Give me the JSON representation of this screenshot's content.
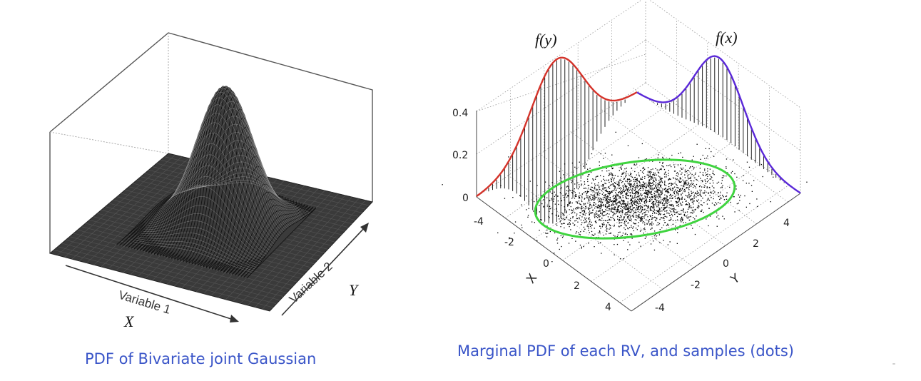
{
  "left_panel": {
    "x_axis_label": "Variable 1",
    "y_axis_label": "Variable 2",
    "x_symbol": "X",
    "y_symbol": "Y",
    "caption": "PDF of Bivariate joint Gaussian"
  },
  "right_panel": {
    "fy_label": "f(y)",
    "fx_label": "f(x)",
    "z_ticks": [
      "0",
      "0.2",
      "0.4"
    ],
    "x_ticks": [
      "-4",
      "-2",
      "0",
      "2",
      "4"
    ],
    "y_ticks": [
      "-4",
      "-2",
      "0",
      "2",
      "4"
    ],
    "x_axis_label": "X",
    "y_axis_label": "Y",
    "caption": "Marginal PDF of each RV, and samples (dots)"
  },
  "colors": {
    "caption": "#3a55c8",
    "fy_curve": "#d4332a",
    "fx_curve": "#5a28d8",
    "ellipse": "#3fd43f",
    "surface": "#2a2a2a"
  }
}
